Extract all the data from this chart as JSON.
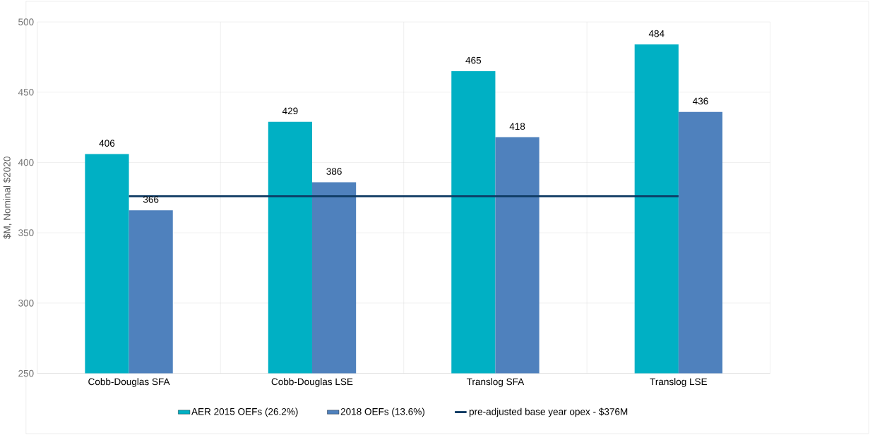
{
  "chart_data": {
    "type": "bar",
    "ylabel": "$M, Nominal $2020",
    "categories": [
      "Cobb-Douglas SFA",
      "Cobb-Douglas LSE",
      "Translog SFA",
      "Translog LSE"
    ],
    "series": [
      {
        "name": "AER 2015 OEFs (26.2%)",
        "color": "#00b0c4",
        "values": [
          406,
          429,
          465,
          484
        ],
        "data_labels": true
      },
      {
        "name": "2018 OEFs (13.6%)",
        "color": "#4f81bd",
        "values": [
          366,
          386,
          418,
          436
        ],
        "data_labels": true
      },
      {
        "name": "pre-adjusted base year opex - $376M",
        "type": "line",
        "color": "#0d3a63",
        "values": [
          376,
          376,
          376,
          376
        ]
      }
    ],
    "ylim": [
      250,
      500
    ],
    "yticks": [
      250,
      300,
      350,
      400,
      450,
      500
    ],
    "grid": true,
    "legend": "bottom"
  }
}
